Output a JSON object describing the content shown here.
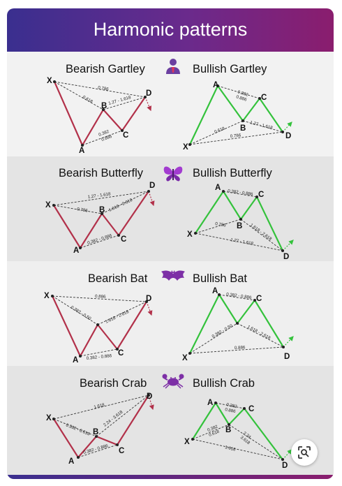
{
  "header": {
    "title": "Harmonic patterns"
  },
  "colors": {
    "bearish": "#b2314a",
    "bullish": "#34c23c",
    "header_start": "#3a2f8f",
    "header_end": "#8a1d6e"
  },
  "icons": [
    "businessman-icon",
    "butterfly-icon",
    "bat-icon",
    "crab-icon",
    "lens-search-icon"
  ],
  "patterns": [
    {
      "key": "gartley",
      "icon": "businessman-icon",
      "bearish": {
        "title": "Bearish Gartley",
        "points": {
          "X": "X",
          "A": "A",
          "B": "B",
          "C": "C",
          "D": "D"
        },
        "ratios": [
          "0.786",
          "0.618",
          "1.27 - 1.618",
          "0.382",
          "0.886"
        ]
      },
      "bullish": {
        "title": "Bullish Gartley",
        "points": {
          "X": "X",
          "A": "A",
          "B": "B",
          "C": "C",
          "D": "D"
        },
        "ratios": [
          "0.382",
          "0.886",
          "0.618",
          "1.27 - 1.618",
          "0.786"
        ]
      }
    },
    {
      "key": "butterfly",
      "icon": "butterfly-icon",
      "bearish": {
        "title": "Bearish Butterfly",
        "points": {
          "X": "X",
          "A": "A",
          "B": "B",
          "C": "C",
          "D": "D"
        },
        "ratios": [
          "1.27 - 1.618",
          "0.786",
          "1.618 - 2.618",
          "0.382 - 0.886"
        ]
      },
      "bullish": {
        "title": "Bullish Butterfly",
        "points": {
          "X": "X",
          "A": "A",
          "B": "B",
          "C": "C",
          "D": "D"
        },
        "ratios": [
          "0.382 - 0.886",
          "0.786",
          "1.618 - 2.618",
          "1.27 - 1.618"
        ]
      }
    },
    {
      "key": "bat",
      "icon": "bat-icon",
      "bearish": {
        "title": "Bearish Bat",
        "points": {
          "X": "X",
          "A": "A",
          "B": "B",
          "C": "C",
          "D": "D"
        },
        "ratios": [
          "0.886",
          "0.382 - 0.50",
          "1.618 - 2.618",
          "0.382 - 0.886"
        ]
      },
      "bullish": {
        "title": "Bullish Bat",
        "points": {
          "X": "X",
          "A": "A",
          "B": "B",
          "C": "C",
          "D": "D"
        },
        "ratios": [
          "0.382 - 0.886",
          "0.382 - 0.50",
          "1.618 - 2.618",
          "0.886"
        ]
      }
    },
    {
      "key": "crab",
      "icon": "crab-icon",
      "bearish": {
        "title": "Bearish Crab",
        "points": {
          "X": "X",
          "A": "A",
          "B": "B",
          "C": "C",
          "D": "D"
        },
        "ratios": [
          "1.618",
          "0.382 - 0.618",
          "2.24 - 3.618",
          "0.382 - 0.886"
        ]
      },
      "bullish": {
        "title": "Bullish Crab",
        "points": {
          "X": "X",
          "A": "A",
          "B": "B",
          "C": "C",
          "D": "D"
        },
        "ratios": [
          "0.382",
          "0.886",
          "0.382",
          "0.618",
          "2.24",
          "3.618",
          "1.618"
        ]
      }
    }
  ]
}
